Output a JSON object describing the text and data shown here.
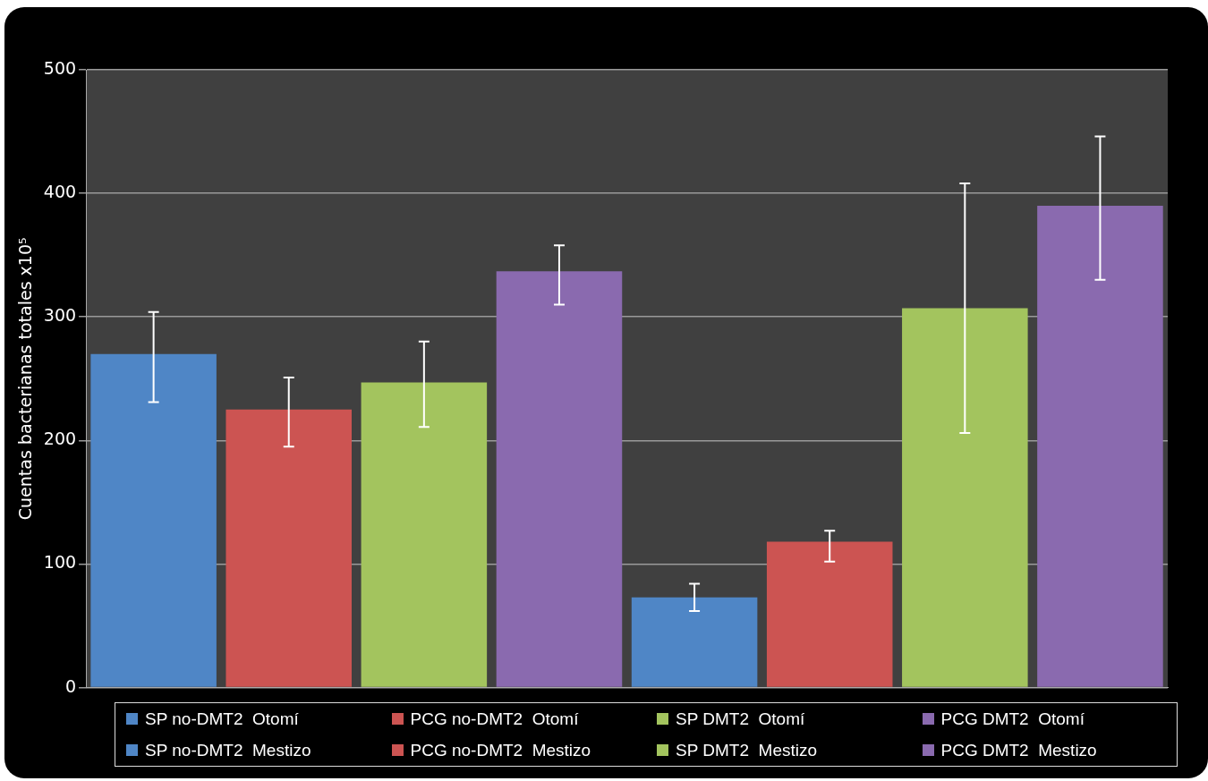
{
  "chart_data": {
    "type": "bar",
    "ylabel": "Cuentas bacterianas totales x10⁵",
    "categories": [
      null,
      null,
      null,
      null,
      null,
      null,
      null,
      null
    ],
    "series": [
      {
        "name": "SP no-DMT2  Otomí",
        "color": "#4f86c6",
        "values": [
          270,
          null,
          null,
          null,
          null,
          null,
          null,
          null
        ],
        "errors": [
          [
            231,
            304
          ],
          null,
          null,
          null,
          null,
          null,
          null,
          null
        ]
      },
      {
        "name": "PCG no-DMT2  Otomí",
        "color": "#cc5452",
        "values": [
          null,
          225,
          null,
          null,
          null,
          null,
          null,
          null
        ],
        "errors": [
          null,
          [
            195,
            251
          ],
          null,
          null,
          null,
          null,
          null,
          null
        ]
      },
      {
        "name": "SP DMT2  Otomí",
        "color": "#a3c45e",
        "values": [
          null,
          null,
          247,
          null,
          null,
          null,
          null,
          null
        ],
        "errors": [
          null,
          null,
          [
            211,
            280
          ],
          null,
          null,
          null,
          null,
          null
        ]
      },
      {
        "name": "PCG DMT2  Otomí",
        "color": "#8a6aaf",
        "values": [
          null,
          null,
          null,
          337,
          null,
          null,
          null,
          null
        ],
        "errors": [
          null,
          null,
          null,
          [
            310,
            358
          ],
          null,
          null,
          null,
          null
        ]
      },
      {
        "name": "SP no-DMT2  Mestizo",
        "color": "#4f86c6",
        "values": [
          null,
          null,
          null,
          null,
          73,
          null,
          null,
          null
        ],
        "errors": [
          null,
          null,
          null,
          null,
          [
            62,
            84
          ],
          null,
          null,
          null
        ]
      },
      {
        "name": "PCG no-DMT2  Mestizo",
        "color": "#cc5452",
        "values": [
          null,
          null,
          null,
          null,
          null,
          118,
          null,
          null
        ],
        "errors": [
          null,
          null,
          null,
          null,
          null,
          [
            102,
            127
          ],
          null,
          null
        ]
      },
      {
        "name": "SP DMT2  Mestizo",
        "color": "#a3c45e",
        "values": [
          null,
          null,
          null,
          null,
          null,
          null,
          307,
          null
        ],
        "errors": [
          null,
          null,
          null,
          null,
          null,
          null,
          [
            206,
            408
          ],
          null
        ]
      },
      {
        "name": "PCG DMT2  Mestizo",
        "color": "#8a6aaf",
        "values": [
          null,
          null,
          null,
          null,
          null,
          null,
          null,
          390
        ],
        "errors": [
          null,
          null,
          null,
          null,
          null,
          null,
          null,
          [
            330,
            446
          ]
        ]
      }
    ],
    "ylim": [
      0,
      500
    ],
    "yticks": [
      0,
      100,
      200,
      300,
      400,
      500
    ],
    "grid": "y",
    "tick_labels": "y",
    "legend": "bottom"
  }
}
